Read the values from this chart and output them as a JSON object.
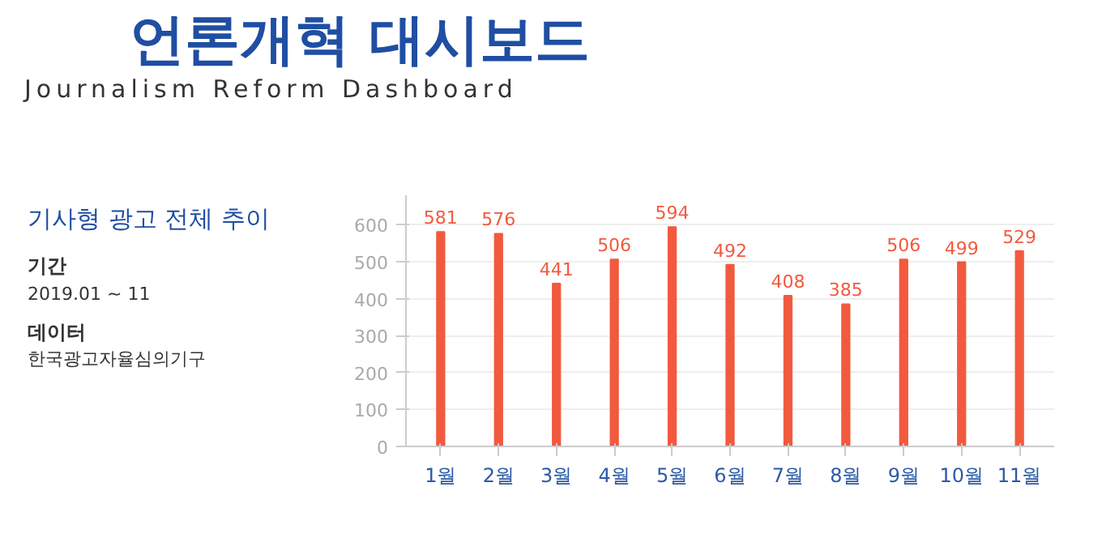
{
  "chart_data": {
    "type": "bar",
    "title": "언론개혁 대시보드",
    "subtitle": "Journalism Reform Dashboard",
    "annotations": [
      "기사형 광고 전체 추이",
      "기간",
      "2019.01 ~ 11",
      "데이터",
      "한국광고자율심의기구"
    ],
    "categories": [
      "1월",
      "2월",
      "3월",
      "4월",
      "5월",
      "6월",
      "7월",
      "8월",
      "9월",
      "10월",
      "11월"
    ],
    "values": [
      581,
      576,
      441,
      506,
      594,
      492,
      408,
      385,
      506,
      499,
      529
    ],
    "color": "#f15a3f",
    "ylim": [
      0,
      680
    ],
    "yticks": [
      0,
      100,
      200,
      300,
      400,
      500,
      600
    ],
    "grid": "y",
    "data_labels": true
  }
}
